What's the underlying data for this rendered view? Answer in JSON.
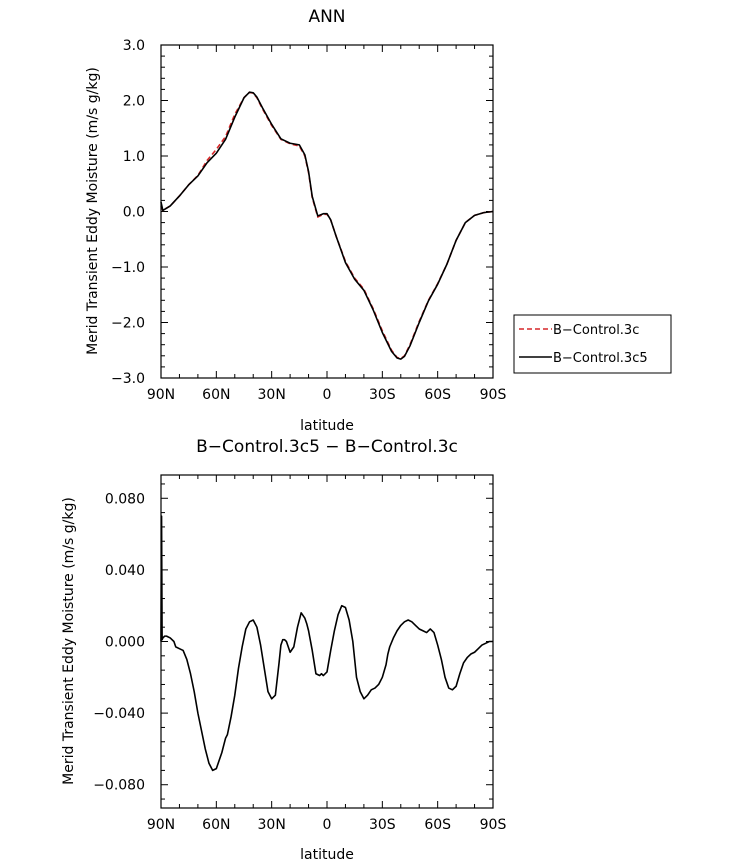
{
  "chart_data": [
    {
      "type": "line",
      "title": "ANN",
      "xlabel": "latitude",
      "ylabel": "Merid Transient Eddy Moisture (m/s g/kg)",
      "xlim": [
        90,
        -90
      ],
      "ylim": [
        -3.0,
        3.0
      ],
      "x_ticks": [
        90,
        60,
        30,
        0,
        -30,
        -60,
        -90
      ],
      "x_tick_labels": [
        "90N",
        "60N",
        "30N",
        "0",
        "30S",
        "60S",
        "90S"
      ],
      "y_ticks": [
        -3,
        -2,
        -1,
        0,
        1,
        2,
        3
      ],
      "y_tick_labels": [
        "−3.0",
        "−2.0",
        "−1.0",
        "0.0",
        "1.0",
        "2.0",
        "3.0"
      ],
      "grid": false,
      "legend_position": "right",
      "series": [
        {
          "name": "B−Control.3c",
          "color": "#d62728",
          "dash": "dashed",
          "x": [
            90,
            89,
            85,
            80,
            75,
            70,
            65,
            60,
            55,
            50,
            45,
            42,
            40,
            38,
            35,
            30,
            25,
            20,
            15,
            12,
            10,
            8,
            5,
            2,
            0,
            -2,
            -5,
            -10,
            -15,
            -20,
            -25,
            -30,
            -35,
            -38,
            -40,
            -42,
            -45,
            -50,
            -55,
            -60,
            -65,
            -70,
            -75,
            -80,
            -85,
            -90
          ],
          "y": [
            0.1,
            0.02,
            0.1,
            0.28,
            0.48,
            0.65,
            0.92,
            1.12,
            1.35,
            1.75,
            2.05,
            2.15,
            2.13,
            2.05,
            1.85,
            1.55,
            1.3,
            1.22,
            1.18,
            1.0,
            0.7,
            0.25,
            -0.1,
            -0.05,
            -0.05,
            -0.15,
            -0.45,
            -0.9,
            -1.2,
            -1.4,
            -1.75,
            -2.15,
            -2.5,
            -2.63,
            -2.65,
            -2.6,
            -2.4,
            -1.98,
            -1.6,
            -1.3,
            -0.95,
            -0.52,
            -0.2,
            -0.07,
            -0.02,
            0.0
          ]
        },
        {
          "name": "B−Control.3c5",
          "color": "#000000",
          "dash": "solid",
          "x": [
            90,
            89,
            85,
            80,
            75,
            70,
            65,
            60,
            55,
            50,
            45,
            42,
            40,
            38,
            35,
            30,
            25,
            20,
            15,
            12,
            10,
            8,
            5,
            2,
            0,
            -2,
            -5,
            -10,
            -15,
            -20,
            -25,
            -30,
            -35,
            -38,
            -40,
            -42,
            -45,
            -50,
            -55,
            -60,
            -65,
            -70,
            -75,
            -80,
            -85,
            -90
          ],
          "y": [
            0.17,
            0.02,
            0.1,
            0.28,
            0.48,
            0.64,
            0.88,
            1.05,
            1.3,
            1.7,
            2.05,
            2.15,
            2.14,
            2.06,
            1.87,
            1.57,
            1.31,
            1.23,
            1.2,
            1.02,
            0.72,
            0.27,
            -0.08,
            -0.04,
            -0.04,
            -0.15,
            -0.45,
            -0.92,
            -1.22,
            -1.42,
            -1.77,
            -2.18,
            -2.52,
            -2.64,
            -2.66,
            -2.61,
            -2.42,
            -2.0,
            -1.61,
            -1.31,
            -0.95,
            -0.52,
            -0.2,
            -0.07,
            -0.02,
            0.0
          ]
        }
      ]
    },
    {
      "type": "line",
      "title": "B−Control.3c5 − B−Control.3c",
      "xlabel": "latitude",
      "ylabel": "Merid Transient Eddy Moisture (m/s g/kg)",
      "xlim": [
        90,
        -90
      ],
      "ylim": [
        -0.093,
        0.093
      ],
      "x_ticks": [
        90,
        60,
        30,
        0,
        -30,
        -60,
        -90
      ],
      "x_tick_labels": [
        "90N",
        "60N",
        "30N",
        "0",
        "30S",
        "60S",
        "90S"
      ],
      "y_ticks": [
        -0.08,
        -0.04,
        0.0,
        0.04,
        0.08
      ],
      "y_tick_labels": [
        "−0.080",
        "−0.040",
        "0.000",
        "0.040",
        "0.080"
      ],
      "grid": false,
      "series": [
        {
          "color": "#000000",
          "dash": "solid",
          "x": [
            90,
            89.7,
            89.4,
            89,
            88,
            87,
            85,
            83,
            82,
            80,
            78,
            76,
            74,
            72,
            70,
            68,
            66,
            64,
            62,
            60,
            58,
            57,
            56,
            55,
            54,
            52,
            50,
            48,
            46,
            44,
            42,
            40,
            38,
            36,
            34,
            32,
            30,
            28,
            26,
            25,
            24,
            23,
            22,
            20,
            18,
            16,
            14,
            12,
            11,
            10,
            8,
            6,
            4,
            3,
            2,
            0,
            -2,
            -4,
            -6,
            -8,
            -10,
            -12,
            -14,
            -15,
            -16,
            -18,
            -20,
            -22,
            -24,
            -26,
            -28,
            -30,
            -32,
            -33,
            -34,
            -36,
            -38,
            -40,
            -42,
            -44,
            -46,
            -48,
            -50,
            -52,
            -54,
            -56,
            -58,
            -60,
            -62,
            -64,
            -66,
            -68,
            -70,
            -72,
            -74,
            -76,
            -78,
            -80,
            -82,
            -84,
            -86,
            -88,
            -90
          ],
          "y": [
            0.0,
            0.07,
            0.001,
            0.002,
            0.003,
            0.003,
            0.002,
            0.0,
            -0.003,
            -0.004,
            -0.005,
            -0.01,
            -0.018,
            -0.028,
            -0.04,
            -0.05,
            -0.06,
            -0.068,
            -0.072,
            -0.071,
            -0.065,
            -0.062,
            -0.058,
            -0.054,
            -0.052,
            -0.042,
            -0.03,
            -0.015,
            -0.003,
            0.007,
            0.011,
            0.012,
            0.008,
            -0.002,
            -0.015,
            -0.028,
            -0.032,
            -0.03,
            -0.012,
            -0.002,
            0.001,
            0.001,
            0.0,
            -0.006,
            -0.003,
            0.008,
            0.016,
            0.013,
            0.01,
            0.006,
            -0.005,
            -0.018,
            -0.019,
            -0.018,
            -0.019,
            -0.017,
            -0.005,
            0.006,
            0.015,
            0.02,
            0.019,
            0.012,
            0.0,
            -0.01,
            -0.02,
            -0.028,
            -0.032,
            -0.03,
            -0.027,
            -0.026,
            -0.024,
            -0.02,
            -0.013,
            -0.007,
            -0.003,
            0.002,
            0.006,
            0.009,
            0.011,
            0.012,
            0.011,
            0.009,
            0.007,
            0.006,
            0.005,
            0.007,
            0.005,
            -0.002,
            -0.01,
            -0.02,
            -0.026,
            -0.027,
            -0.025,
            -0.018,
            -0.012,
            -0.009,
            -0.007,
            -0.006,
            -0.004,
            -0.002,
            -0.001,
            0.0,
            0.0
          ]
        }
      ]
    }
  ]
}
